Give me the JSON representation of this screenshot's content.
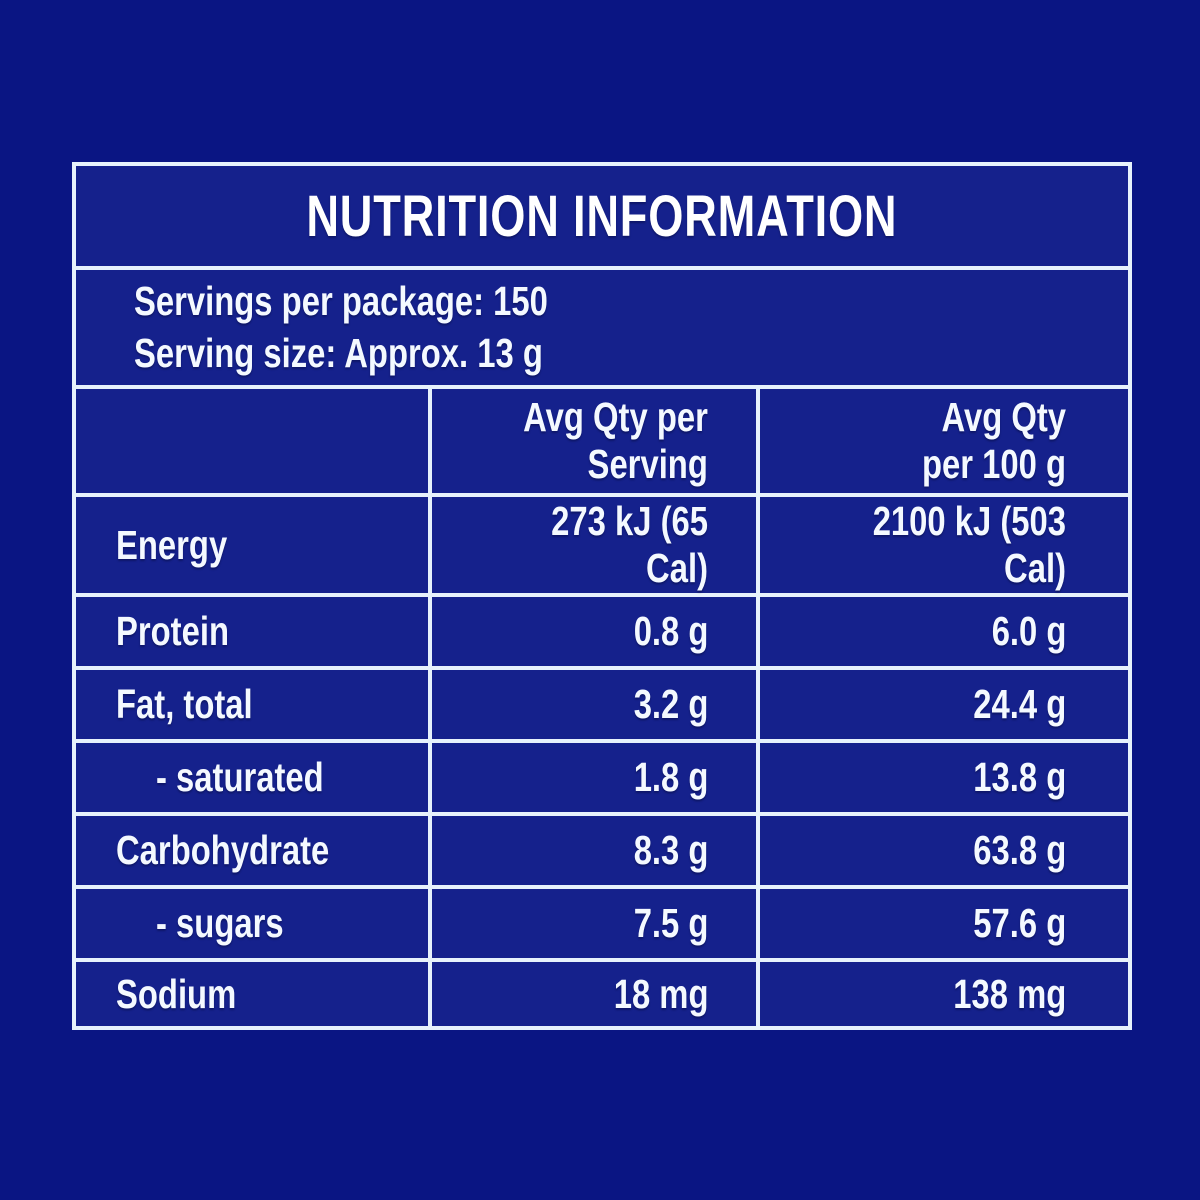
{
  "colors": {
    "page-bg": "#0a1583",
    "cell-bg": "#15218c",
    "grid": "#e7f2fc",
    "text": "#f4f9ff",
    "title": "#ffffff"
  },
  "label": {
    "title": "NUTRITION INFORMATION",
    "servings_per_package": "Servings per package: 150",
    "serving_size": "Serving size: Approx. 13 g",
    "col_headers": {
      "per_serving": "Avg Qty per\nServing",
      "per_100g": "Avg Qty\nper 100 g"
    },
    "rows": [
      {
        "nutrient": "Energy",
        "per_serving": "273 kJ (65 Cal)",
        "per_100g": "2100 kJ (503 Cal)"
      },
      {
        "nutrient": "Protein",
        "per_serving": "0.8 g",
        "per_100g": "6.0 g"
      },
      {
        "nutrient": "Fat, total",
        "per_serving": "3.2 g",
        "per_100g": "24.4 g"
      },
      {
        "nutrient": "- saturated",
        "per_serving": "1.8 g",
        "per_100g": "13.8 g"
      },
      {
        "nutrient": "Carbohydrate",
        "per_serving": "8.3 g",
        "per_100g": "63.8 g"
      },
      {
        "nutrient": "- sugars",
        "per_serving": "7.5 g",
        "per_100g": "57.6 g"
      },
      {
        "nutrient": "Sodium",
        "per_serving": "18 mg",
        "per_100g": "138 mg"
      }
    ]
  }
}
